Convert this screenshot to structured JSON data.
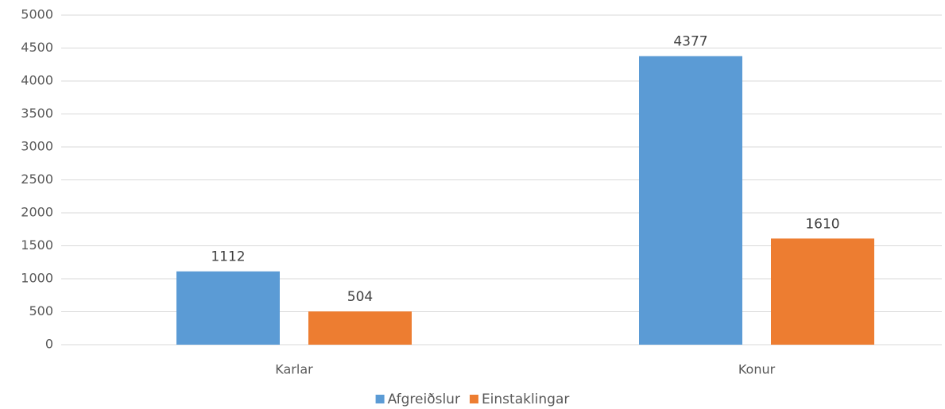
{
  "chart_data": {
    "type": "bar",
    "categories": [
      "Karlar",
      "Konur"
    ],
    "series": [
      {
        "name": "Afgreiðslur",
        "color": "#5b9bd5",
        "values": [
          1112,
          4377
        ]
      },
      {
        "name": "Einstaklingar",
        "color": "#ed7d31",
        "values": [
          504,
          1610
        ]
      }
    ],
    "ylim": [
      0,
      5000
    ],
    "yticks": [
      0,
      500,
      1000,
      1500,
      2000,
      2500,
      3000,
      3500,
      4000,
      4500,
      5000
    ],
    "grid": true,
    "legend": "bottom"
  }
}
